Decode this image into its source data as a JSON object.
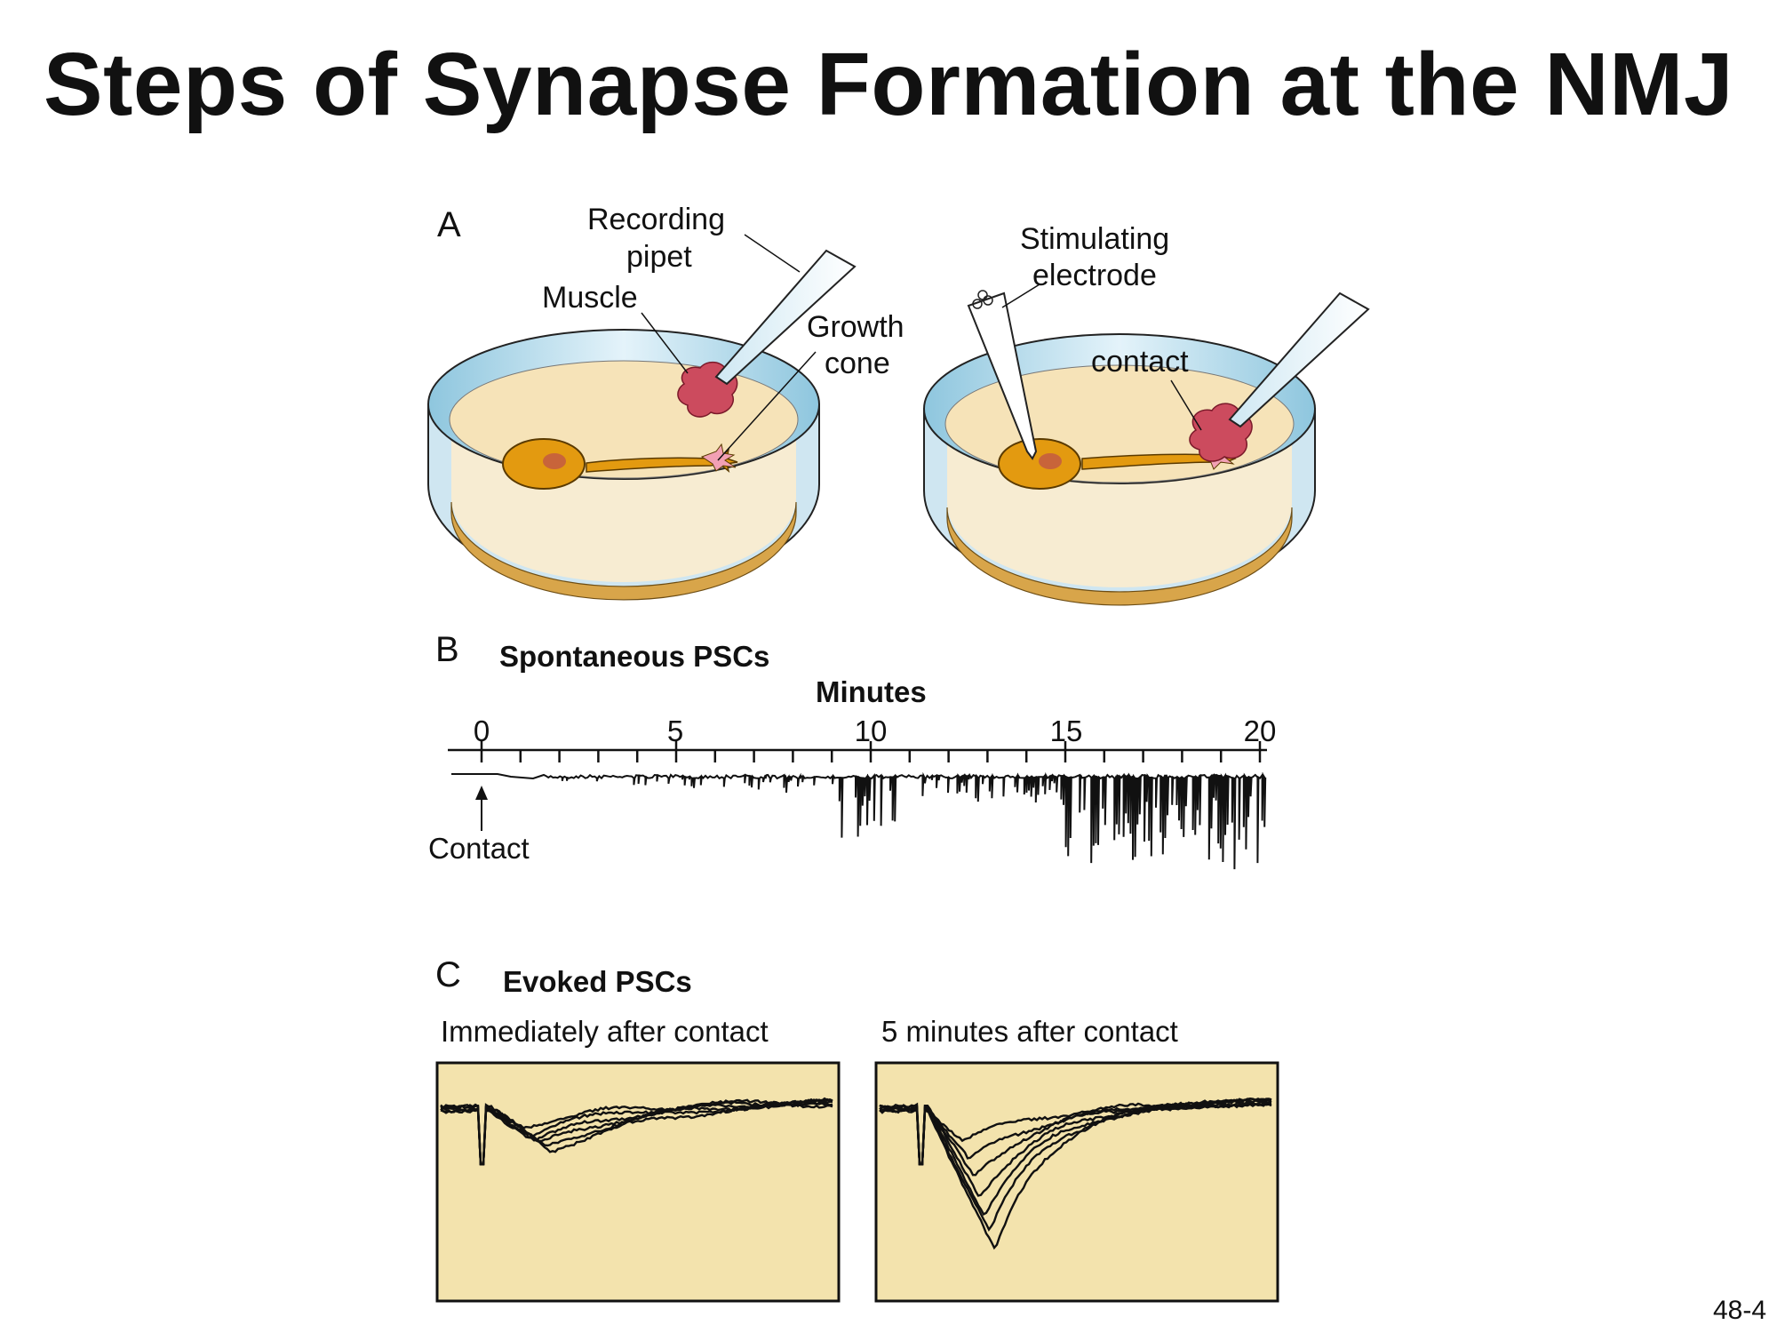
{
  "title": "Steps of Synapse Formation at the NMJ",
  "page_number": "48-4",
  "panel_a": {
    "letter": "A",
    "recording_pipet_label_line1": "Recording",
    "recording_pipet_label_line2": "pipet",
    "muscle_label": "Muscle",
    "growth_cone_label_line1": "Growth",
    "growth_cone_label_line2": "cone",
    "stimulating_electrode_label_line1": "Stimulating",
    "stimulating_electrode_label_line2": "electrode",
    "contact_label": "contact"
  },
  "panel_b": {
    "letter": "B",
    "heading": "Spontaneous PSCs",
    "axis_title": "Minutes",
    "ticks": [
      "0",
      "5",
      "10",
      "15",
      "20"
    ],
    "contact_label": "Contact"
  },
  "panel_c": {
    "letter": "C",
    "heading": "Evoked PSCs",
    "left_caption": "Immediately after contact",
    "right_caption": "5 minutes after contact"
  },
  "colors": {
    "dish_rim": "#bfe0ee",
    "dish_rim_dark": "#7fbcd6",
    "medium": "#f6e3b8",
    "medium_side": "#f7ecd2",
    "dish_base_band": "#d8a54a",
    "neuron_body": "#e39a10",
    "nucleus": "#c8643a",
    "muscle": "#cc4b5e",
    "trace_panel_bg": "#f3e3ad"
  }
}
